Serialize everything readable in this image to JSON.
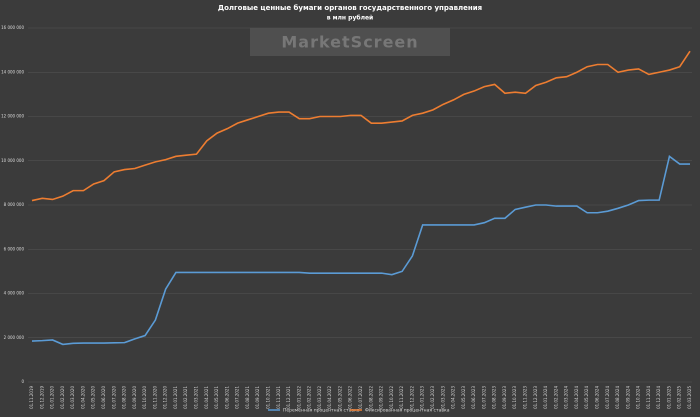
{
  "chart_data": {
    "type": "line",
    "title": "Долговые ценные бумаги органов государственного управления",
    "subtitle": "в млн рублей",
    "watermark": "MarketScreen",
    "categories": [
      "01.11.2019",
      "01.12.2019",
      "01.01.2020",
      "01.02.2020",
      "01.03.2020",
      "01.04.2020",
      "01.05.2020",
      "01.06.2020",
      "01.07.2020",
      "01.08.2020",
      "01.09.2020",
      "01.10.2020",
      "01.11.2020",
      "01.12.2020",
      "01.01.2021",
      "01.02.2021",
      "01.03.2021",
      "01.04.2021",
      "01.05.2021",
      "01.06.2021",
      "01.07.2021",
      "01.08.2021",
      "01.09.2021",
      "01.10.2021",
      "01.11.2021",
      "01.12.2021",
      "01.01.2022",
      "01.02.2022",
      "01.03.2022",
      "01.04.2022",
      "01.05.2022",
      "01.06.2022",
      "01.07.2022",
      "01.08.2022",
      "01.09.2022",
      "01.10.2022",
      "01.11.2022",
      "01.12.2022",
      "01.01.2023",
      "01.02.2023",
      "01.03.2023",
      "01.04.2023",
      "01.05.2023",
      "01.06.2023",
      "01.07.2023",
      "01.08.2023",
      "01.09.2023",
      "01.10.2023",
      "01.11.2023",
      "01.12.2023",
      "01.01.2024",
      "01.02.2024",
      "01.03.2024",
      "01.04.2024",
      "01.05.2024",
      "01.06.2024",
      "01.07.2024",
      "01.08.2024",
      "01.09.2024",
      "01.10.2024",
      "01.11.2024",
      "01.12.2024",
      "01.01.2025",
      "01.02.2025",
      "01.03.2025"
    ],
    "series": [
      {
        "name": "Переменная процентная ставка",
        "color": "#5b9bd5",
        "values": [
          1850000,
          1870000,
          1900000,
          1700000,
          1750000,
          1760000,
          1760000,
          1760000,
          1770000,
          1780000,
          1950000,
          2100000,
          2800000,
          4200000,
          4950000,
          4950000,
          4950000,
          4950000,
          4950000,
          4950000,
          4950000,
          4950000,
          4950000,
          4950000,
          4950000,
          4950000,
          4950000,
          4920000,
          4920000,
          4920000,
          4920000,
          4920000,
          4920000,
          4920000,
          4920000,
          4850000,
          5000000,
          5700000,
          7100000,
          7100000,
          7100000,
          7100000,
          7100000,
          7100000,
          7200000,
          7400000,
          7400000,
          7800000,
          7900000,
          8000000,
          8000000,
          7950000,
          7950000,
          7950000,
          7650000,
          7650000,
          7720000,
          7850000,
          8000000,
          8200000,
          8220000,
          8220000,
          10200000,
          9850000,
          9850000
        ]
      },
      {
        "name": "Фиксированная процентная ставка",
        "color": "#ed7d31",
        "values": [
          8200000,
          8300000,
          8250000,
          8400000,
          8650000,
          8650000,
          8950000,
          9100000,
          9500000,
          9600000,
          9650000,
          9800000,
          9950000,
          10050000,
          10200000,
          10250000,
          10300000,
          10900000,
          11250000,
          11450000,
          11700000,
          11850000,
          12000000,
          12150000,
          12200000,
          12200000,
          11900000,
          11900000,
          12000000,
          12000000,
          12000000,
          12050000,
          12050000,
          11700000,
          11700000,
          11750000,
          11800000,
          12050000,
          12150000,
          12300000,
          12550000,
          12750000,
          13000000,
          13150000,
          13350000,
          13450000,
          13050000,
          13100000,
          13050000,
          13400000,
          13550000,
          13750000,
          13800000,
          14000000,
          14250000,
          14350000,
          14350000,
          14000000,
          14100000,
          14150000,
          13900000,
          14000000,
          14100000,
          14250000,
          14950000
        ]
      }
    ],
    "ylim": [
      0,
      16000000
    ],
    "yticks": [
      0,
      {
        "value": 2000000,
        "label": "2 000 000"
      },
      {
        "value": 4000000,
        "label": "4 000 000"
      },
      {
        "value": 6000000,
        "label": "6 000 000"
      },
      {
        "value": 8000000,
        "label": "8 000 000"
      },
      {
        "value": 10000000,
        "label": "10 000 000"
      },
      {
        "value": 12000000,
        "label": "12 000 000"
      },
      {
        "value": 14000000,
        "label": "14 000 000"
      },
      {
        "value": 16000000,
        "label": "16 000 000"
      }
    ],
    "grid": true
  }
}
